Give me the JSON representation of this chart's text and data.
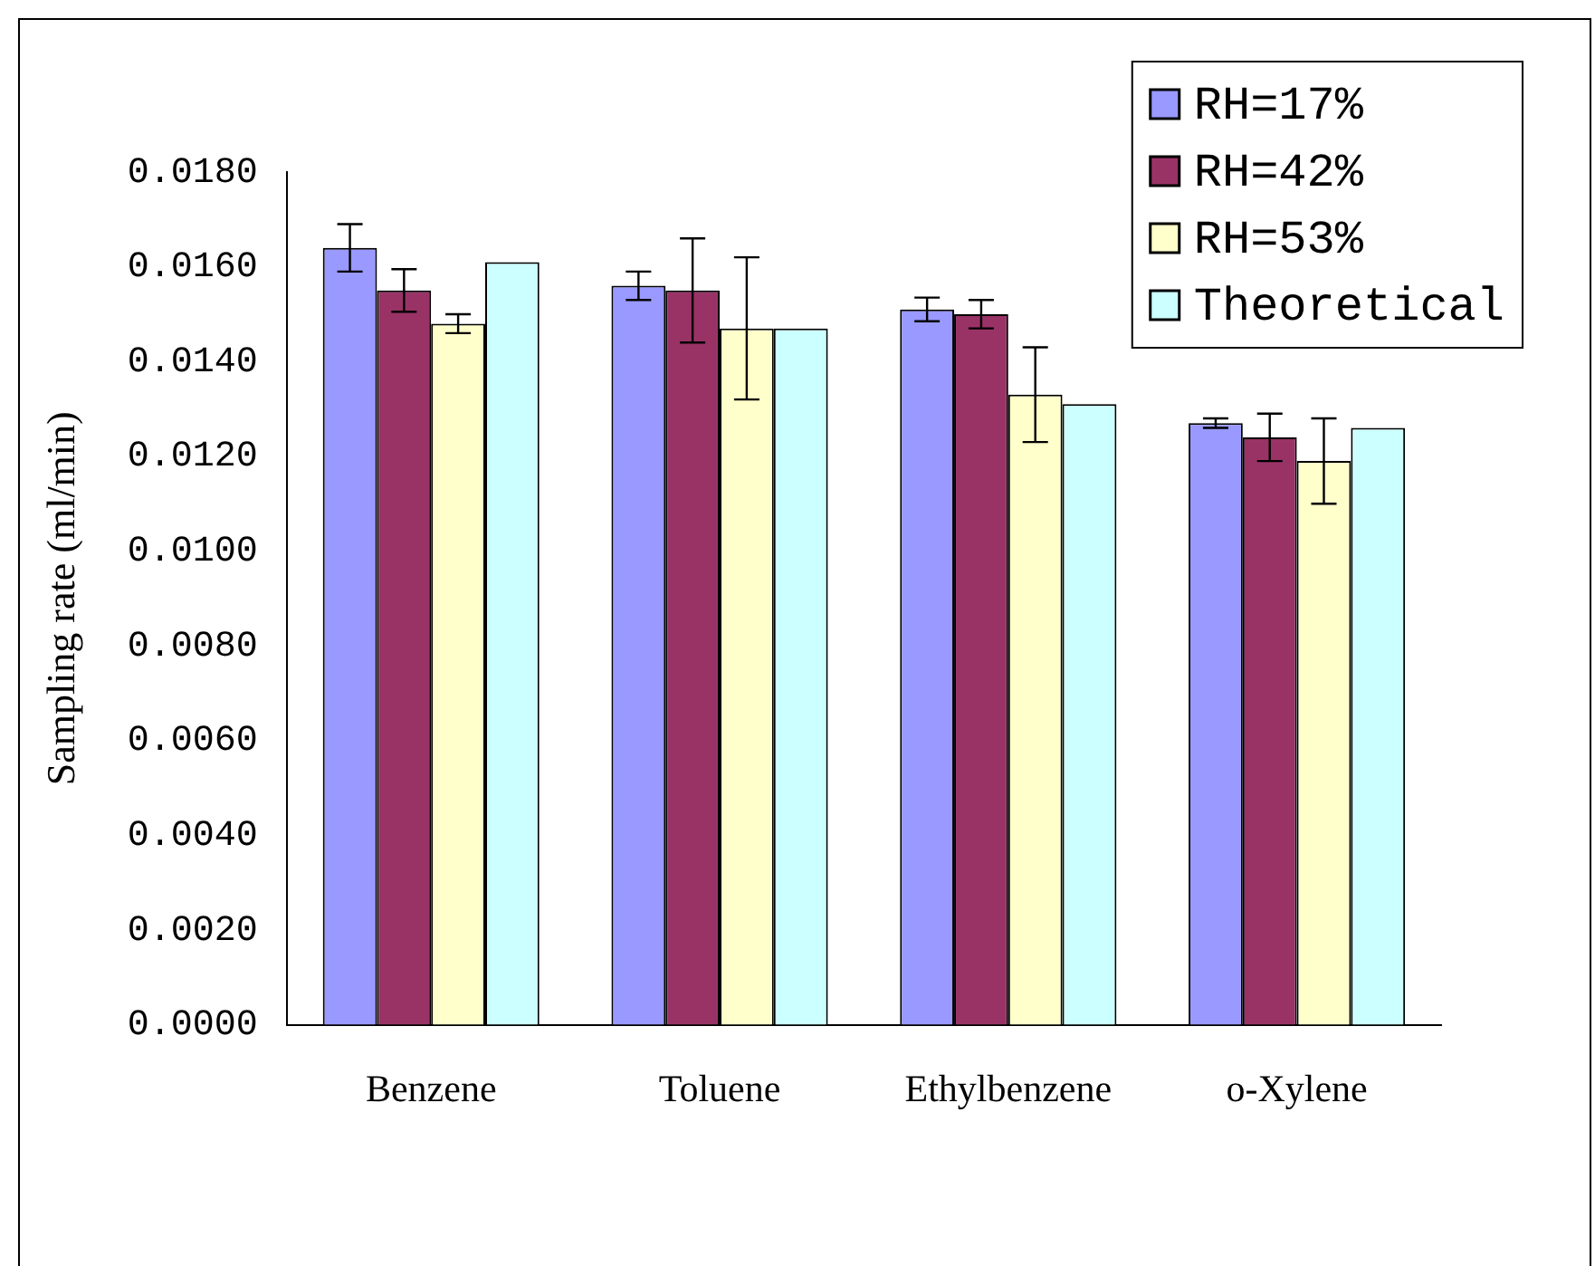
{
  "chart_data": {
    "type": "bar",
    "ylabel": "Sampling rate (ml/min)",
    "categories": [
      "Benzene",
      "Toluene",
      "Ethylbenzene",
      "o-Xylene"
    ],
    "series": [
      {
        "name": "RH=17%",
        "color": "#9999ff",
        "values": [
          0.0164,
          0.0156,
          0.0151,
          0.0127
        ],
        "errors": [
          0.0005,
          0.0003,
          0.00025,
          0.0001
        ]
      },
      {
        "name": "RH=42%",
        "color": "#993366",
        "values": [
          0.0155,
          0.0155,
          0.015,
          0.0124
        ],
        "errors": [
          0.00045,
          0.0011,
          0.0003,
          0.0005
        ]
      },
      {
        "name": "RH=53%",
        "color": "#ffffcc",
        "values": [
          0.0148,
          0.0147,
          0.0133,
          0.0119
        ],
        "errors": [
          0.0002,
          0.0015,
          0.001,
          0.0009
        ]
      },
      {
        "name": "Theoretical",
        "color": "#ccffff",
        "values": [
          0.0161,
          0.0147,
          0.0131,
          0.0126
        ]
      }
    ],
    "ylim": [
      0,
      0.018
    ],
    "yticks": [
      {
        "value": 0,
        "label": "0.0000"
      },
      {
        "value": 0.002,
        "label": "0.0020"
      },
      {
        "value": 0.004,
        "label": "0.0040"
      },
      {
        "value": 0.006,
        "label": "0.0060"
      },
      {
        "value": 0.008,
        "label": "0.0080"
      },
      {
        "value": 0.01,
        "label": "0.0100"
      },
      {
        "value": 0.012,
        "label": "0.0120"
      },
      {
        "value": 0.014,
        "label": "0.0140"
      },
      {
        "value": 0.016,
        "label": "0.0160"
      },
      {
        "value": 0.018,
        "label": "0.0180"
      }
    ],
    "grid": false,
    "legend": "top right"
  }
}
